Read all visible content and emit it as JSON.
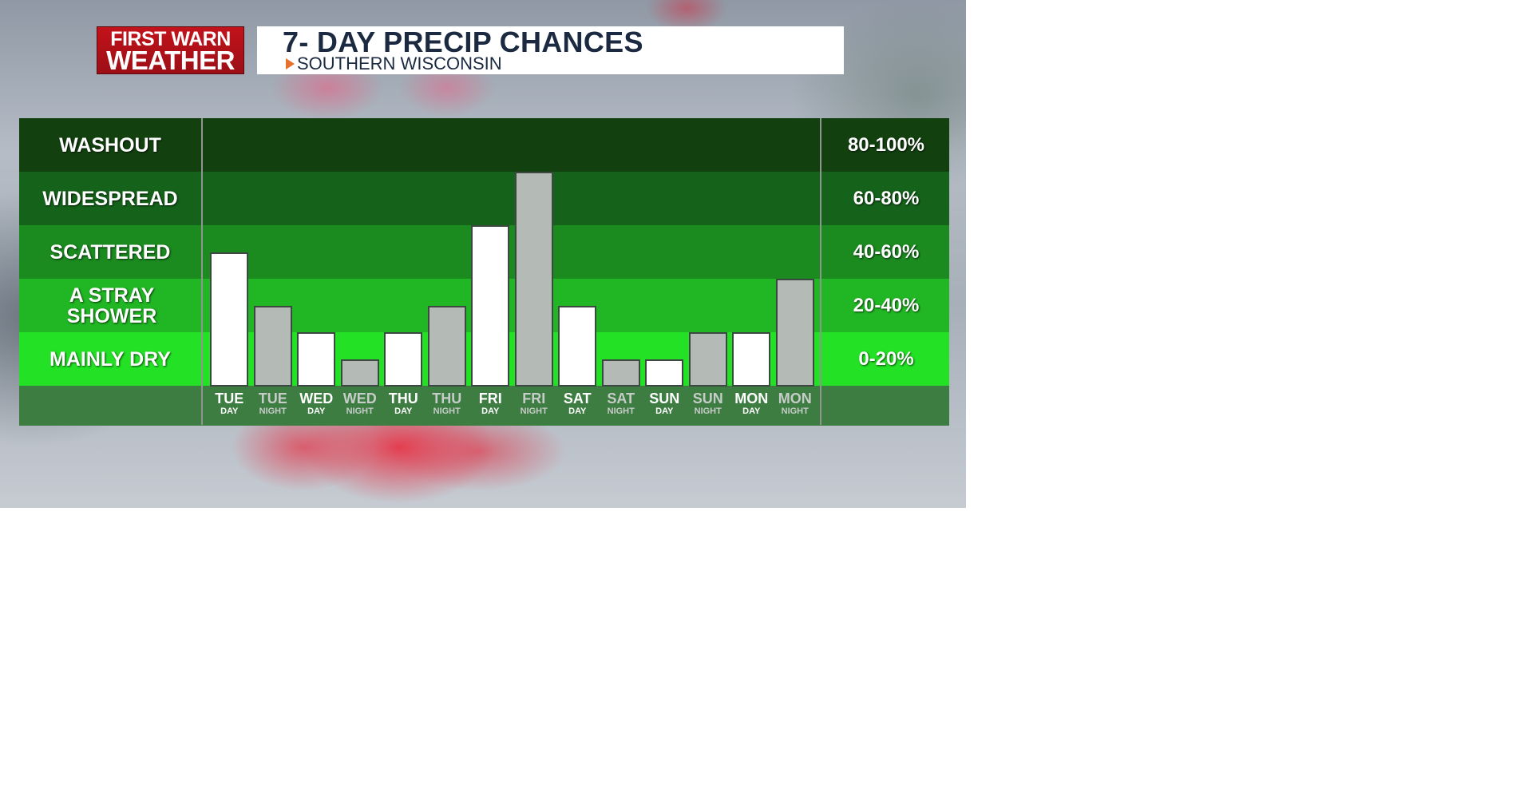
{
  "brand": {
    "line1": "FIRST WARN",
    "line2": "WEATHER"
  },
  "header": {
    "title": "7- DAY PRECIP CHANCES",
    "subtitle": "SOUTHERN WISCONSIN"
  },
  "colors": {
    "washout": "#12410f",
    "widespread": "#15621a",
    "scattered": "#1b8a1f",
    "stray": "#21b624",
    "dry": "#23e225",
    "axis_row": "#3d7d42",
    "bar_day": "#ffffff",
    "bar_night": "#b4bab6"
  },
  "chart_data": {
    "type": "bar",
    "title": "7- DAY PRECIP CHANCES",
    "subtitle": "SOUTHERN WISCONSIN",
    "ylim": [
      0,
      100
    ],
    "bands": [
      {
        "label": "WASHOUT",
        "range": "80-100%"
      },
      {
        "label": "WIDESPREAD",
        "range": "60-80%"
      },
      {
        "label": "SCATTERED",
        "range": "40-60%"
      },
      {
        "label": "A STRAY SHOWER",
        "range": "20-40%"
      },
      {
        "label": "MAINLY DRY",
        "range": "0-20%"
      }
    ],
    "categories": [
      {
        "day": "TUE",
        "period": "DAY",
        "value": 50
      },
      {
        "day": "TUE",
        "period": "NIGHT",
        "value": 30
      },
      {
        "day": "WED",
        "period": "DAY",
        "value": 20
      },
      {
        "day": "WED",
        "period": "NIGHT",
        "value": 10
      },
      {
        "day": "THU",
        "period": "DAY",
        "value": 20
      },
      {
        "day": "THU",
        "period": "NIGHT",
        "value": 30
      },
      {
        "day": "FRI",
        "period": "DAY",
        "value": 60
      },
      {
        "day": "FRI",
        "period": "NIGHT",
        "value": 80
      },
      {
        "day": "SAT",
        "period": "DAY",
        "value": 30
      },
      {
        "day": "SAT",
        "period": "NIGHT",
        "value": 10
      },
      {
        "day": "SUN",
        "period": "DAY",
        "value": 10
      },
      {
        "day": "SUN",
        "period": "NIGHT",
        "value": 20
      },
      {
        "day": "MON",
        "period": "DAY",
        "value": 20
      },
      {
        "day": "MON",
        "period": "NIGHT",
        "value": 40
      }
    ]
  }
}
